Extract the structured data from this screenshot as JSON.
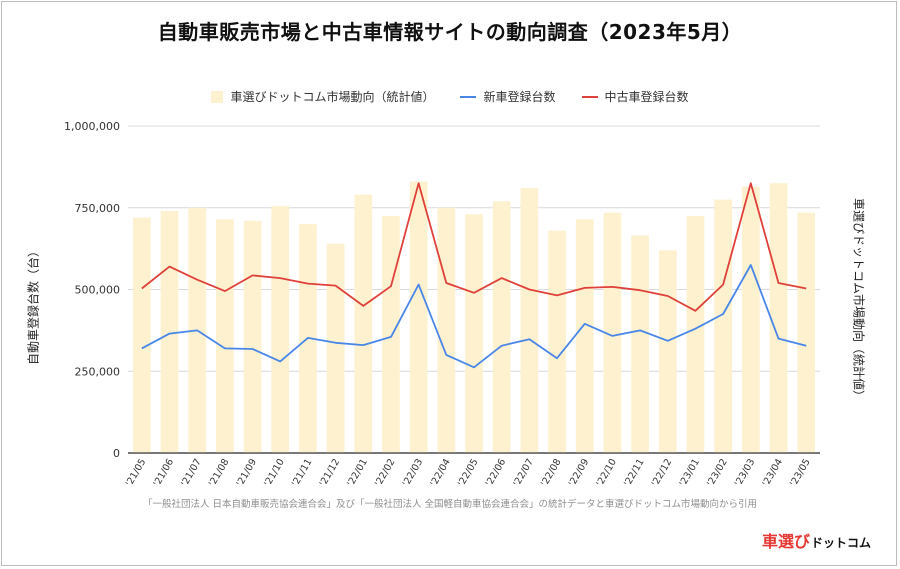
{
  "title": "自動車販売市場と中古車情報サイトの動向調査（2023年5月）",
  "legend": [
    {
      "name": "車選びドットコム市場動向（統計値）",
      "kind": "box",
      "color": "#fdf1cf"
    },
    {
      "name": "新車登録台数",
      "kind": "line",
      "color": "#4a86e8"
    },
    {
      "name": "中古車登録台数",
      "kind": "line",
      "color": "#e0403a"
    }
  ],
  "ylabel_left": "自動車登録台数（台）",
  "ylabel_right": "車選びドットコム市場動向（統計値）",
  "source_note": "「一般社団法人 日本自動車販売協会連合会」及び「一般社団法人 全国軽自動車協会連合会」の統計データと車選びドットコム市場動向から引用",
  "logo": {
    "main": "車選び",
    "sub": "ドットコム"
  },
  "chart_data": {
    "type": "bar+line",
    "categories": [
      "'21/05",
      "'21/06",
      "'21/07",
      "'21/08",
      "'21/09",
      "'21/10",
      "'21/11",
      "'21/12",
      "'22/01",
      "'22/02",
      "'22/03",
      "'22/04",
      "'22/05",
      "'22/06",
      "'22/07",
      "'22/08",
      "'22/09",
      "'22/10",
      "'22/11",
      "'22/12",
      "'23/01",
      "'23/02",
      "'23/03",
      "'23/04",
      "'23/05"
    ],
    "ylim": [
      0,
      1000000
    ],
    "yticks": [
      0,
      250000,
      500000,
      750000,
      1000000
    ],
    "ytick_labels": [
      "0",
      "250,000",
      "500,000",
      "750,000",
      "1,000,000"
    ],
    "series": [
      {
        "name": "車選びドットコム市場動向（統計値）",
        "type": "bar",
        "color": "#fdf1cf",
        "values": [
          720000,
          740000,
          750000,
          715000,
          710000,
          755000,
          700000,
          640000,
          790000,
          725000,
          830000,
          750000,
          730000,
          770000,
          810000,
          680000,
          715000,
          735000,
          665000,
          620000,
          725000,
          775000,
          815000,
          825000,
          735000
        ]
      },
      {
        "name": "新車登録台数",
        "type": "line",
        "color": "#4a86e8",
        "values": [
          320000,
          365000,
          375000,
          320000,
          318000,
          280000,
          352000,
          337000,
          330000,
          355000,
          515000,
          300000,
          262000,
          328000,
          348000,
          290000,
          395000,
          358000,
          375000,
          343000,
          380000,
          425000,
          575000,
          350000,
          328000
        ]
      },
      {
        "name": "中古車登録台数",
        "type": "line",
        "color": "#e0403a",
        "values": [
          503000,
          570000,
          530000,
          495000,
          543000,
          535000,
          518000,
          512000,
          450000,
          510000,
          825000,
          520000,
          490000,
          535000,
          500000,
          482000,
          505000,
          508000,
          498000,
          480000,
          435000,
          515000,
          825000,
          520000,
          503000
        ]
      }
    ]
  }
}
